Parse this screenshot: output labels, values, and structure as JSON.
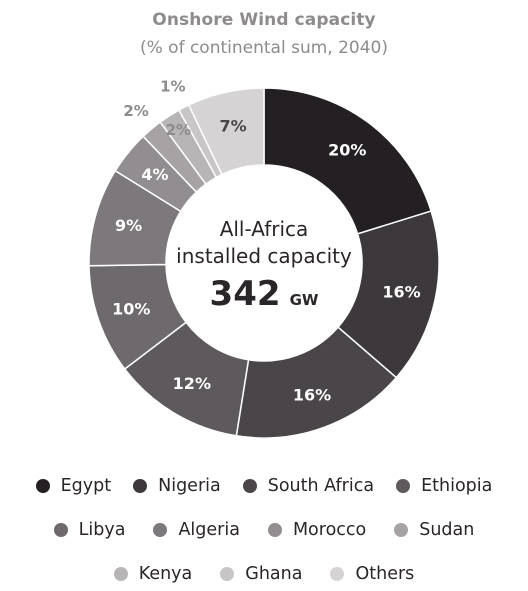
{
  "chart_data": {
    "type": "pie",
    "title": "Onshore Wind capacity",
    "subtitle": "(% of continental sum, 2040)",
    "center": {
      "line1": "All-Africa",
      "line2": "installed capacity",
      "value": "342",
      "unit": "GW"
    },
    "categories": [
      "Egypt",
      "Nigeria",
      "South Africa",
      "Ethiopia",
      "Libya",
      "Algeria",
      "Morocco",
      "Sudan",
      "Kenya",
      "Ghana",
      "Others"
    ],
    "values": [
      20,
      16,
      16,
      12,
      10,
      9,
      4,
      2,
      2,
      1,
      7
    ],
    "labels": [
      "20%",
      "16%",
      "16%",
      "12%",
      "10%",
      "9%",
      "4%",
      "2%",
      "2%",
      "1%",
      "7%"
    ],
    "colors": [
      "#241f22",
      "#3d383b",
      "#4a4548",
      "#5e595c",
      "#6e696c",
      "#7d787b",
      "#928d90",
      "#a7a3a5",
      "#b8b5b6",
      "#c9c6c7",
      "#d6d3d4"
    ],
    "legend_placement": "bottom"
  }
}
